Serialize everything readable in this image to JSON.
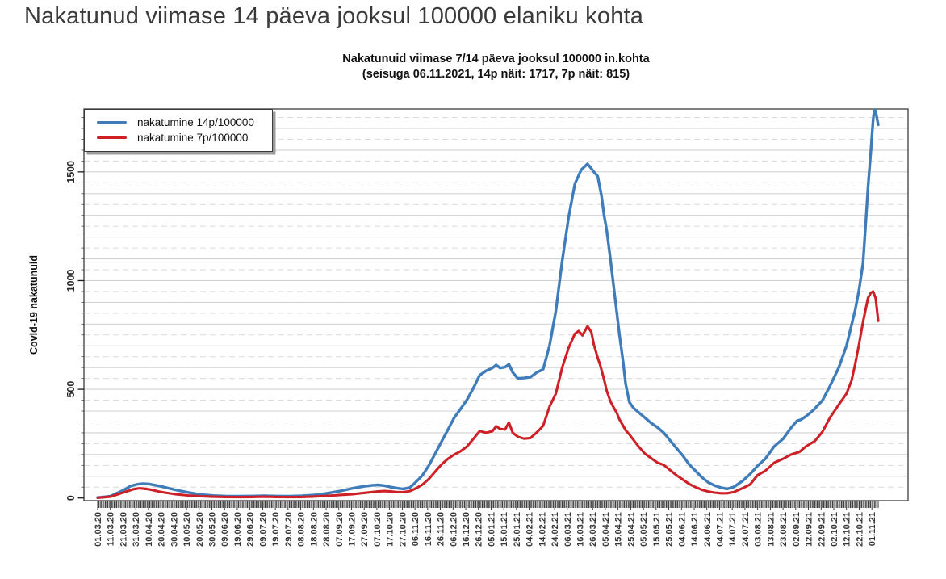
{
  "page": {
    "heading": "Nakatunud viimase 14 päeva jooksul 100000 elaniku kohta"
  },
  "chart": {
    "title": "Nakatunuid viimase 7/14 päeva jooksul 100000 in.kohta",
    "subtitle": "(seisuga 06.11.2021, 14p näit: 1717, 7p näit: 815)",
    "legend_items": [
      {
        "label": "nakatumine 14p/100000",
        "color": "#3f7cba"
      },
      {
        "label": "nakatumine 7p/100000",
        "color": "#cd2127"
      }
    ]
  },
  "chart_data": {
    "type": "line",
    "title": "Nakatunuid viimase 7/14 päeva jooksul 100000 in.kohta",
    "subtitle": "(seisuga 06.11.2021, 14p näit: 1717, 7p näit: 815)",
    "xlabel": "",
    "ylabel": "Covid-19 nakatunuid",
    "as_of": "06.11.2021",
    "latest": {
      "14p": 1717,
      "7p": 815
    },
    "x_unit": "days since 01.03.2020; tick labels every 10 days",
    "x_tick_step_days": 10,
    "x_range_days": [
      0,
      615
    ],
    "ylim": [
      0,
      1789
    ],
    "yticks": [
      0,
      500,
      1000,
      1500
    ],
    "grid": "solid gray every 100, dashed light gray every 50",
    "legend_position": "top-left",
    "x_tick_labels": [
      "01.03.20",
      "11.03.20",
      "21.03.20",
      "31.03.20",
      "10.04.20",
      "20.04.20",
      "30.04.20",
      "10.05.20",
      "20.05.20",
      "30.05.20",
      "09.06.20",
      "19.06.20",
      "29.06.20",
      "09.07.20",
      "19.07.20",
      "29.07.20",
      "08.08.20",
      "18.08.20",
      "28.08.20",
      "07.09.20",
      "17.09.20",
      "27.09.20",
      "07.10.20",
      "17.10.20",
      "27.10.20",
      "06.11.20",
      "16.11.20",
      "26.11.20",
      "06.12.20",
      "16.12.20",
      "26.12.20",
      "05.01.21",
      "15.01.21",
      "25.01.21",
      "04.02.21",
      "14.02.21",
      "24.02.21",
      "06.03.21",
      "16.03.21",
      "26.03.21",
      "05.04.21",
      "15.04.21",
      "25.04.21",
      "05.05.21",
      "15.05.21",
      "25.05.21",
      "04.06.21",
      "14.06.21",
      "24.06.21",
      "04.07.21",
      "14.07.21",
      "24.07.21",
      "03.08.21",
      "13.08.21",
      "23.08.21",
      "02.09.21",
      "12.09.21",
      "22.09.21",
      "02.10.21",
      "12.10.21",
      "22.10.21",
      "01.11.21"
    ],
    "series": [
      {
        "name": "nakatumine 14p/100000",
        "color": "#3f7cba",
        "points": [
          [
            0,
            2
          ],
          [
            10,
            8
          ],
          [
            20,
            35
          ],
          [
            26,
            55
          ],
          [
            31,
            63
          ],
          [
            36,
            66
          ],
          [
            41,
            64
          ],
          [
            46,
            58
          ],
          [
            51,
            52
          ],
          [
            61,
            38
          ],
          [
            71,
            26
          ],
          [
            81,
            16
          ],
          [
            91,
            11
          ],
          [
            101,
            9
          ],
          [
            111,
            8
          ],
          [
            121,
            9
          ],
          [
            131,
            10
          ],
          [
            141,
            9
          ],
          [
            151,
            8
          ],
          [
            161,
            10
          ],
          [
            171,
            14
          ],
          [
            181,
            22
          ],
          [
            191,
            32
          ],
          [
            201,
            45
          ],
          [
            211,
            55
          ],
          [
            216,
            58
          ],
          [
            221,
            60
          ],
          [
            226,
            57
          ],
          [
            231,
            50
          ],
          [
            236,
            45
          ],
          [
            241,
            42
          ],
          [
            246,
            48
          ],
          [
            251,
            75
          ],
          [
            256,
            105
          ],
          [
            261,
            150
          ],
          [
            266,
            205
          ],
          [
            271,
            260
          ],
          [
            276,
            315
          ],
          [
            281,
            370
          ],
          [
            286,
            410
          ],
          [
            291,
            452
          ],
          [
            296,
            505
          ],
          [
            301,
            565
          ],
          [
            306,
            585
          ],
          [
            311,
            598
          ],
          [
            314,
            612
          ],
          [
            317,
            598
          ],
          [
            321,
            602
          ],
          [
            324,
            615
          ],
          [
            327,
            578
          ],
          [
            331,
            550
          ],
          [
            336,
            552
          ],
          [
            341,
            556
          ],
          [
            346,
            578
          ],
          [
            351,
            592
          ],
          [
            356,
            700
          ],
          [
            361,
            860
          ],
          [
            366,
            1090
          ],
          [
            371,
            1290
          ],
          [
            376,
            1445
          ],
          [
            381,
            1510
          ],
          [
            386,
            1537
          ],
          [
            389,
            1515
          ],
          [
            391,
            1500
          ],
          [
            394,
            1480
          ],
          [
            397,
            1390
          ],
          [
            399,
            1300
          ],
          [
            401,
            1235
          ],
          [
            404,
            1100
          ],
          [
            406,
            1000
          ],
          [
            409,
            855
          ],
          [
            411,
            755
          ],
          [
            414,
            625
          ],
          [
            416,
            525
          ],
          [
            419,
            440
          ],
          [
            422,
            415
          ],
          [
            426,
            395
          ],
          [
            431,
            370
          ],
          [
            436,
            345
          ],
          [
            441,
            325
          ],
          [
            446,
            300
          ],
          [
            451,
            265
          ],
          [
            456,
            230
          ],
          [
            461,
            195
          ],
          [
            466,
            155
          ],
          [
            471,
            125
          ],
          [
            476,
            95
          ],
          [
            481,
            72
          ],
          [
            486,
            58
          ],
          [
            491,
            48
          ],
          [
            496,
            42
          ],
          [
            501,
            50
          ],
          [
            508,
            78
          ],
          [
            514,
            110
          ],
          [
            520,
            148
          ],
          [
            526,
            180
          ],
          [
            533,
            237
          ],
          [
            540,
            272
          ],
          [
            546,
            320
          ],
          [
            551,
            355
          ],
          [
            554,
            360
          ],
          [
            558,
            375
          ],
          [
            564,
            405
          ],
          [
            571,
            448
          ],
          [
            577,
            515
          ],
          [
            584,
            601
          ],
          [
            590,
            700
          ],
          [
            597,
            868
          ],
          [
            600,
            960
          ],
          [
            603,
            1080
          ],
          [
            605,
            1250
          ],
          [
            607,
            1430
          ],
          [
            609,
            1580
          ],
          [
            611,
            1740
          ],
          [
            612,
            1786
          ],
          [
            613,
            1778
          ],
          [
            615,
            1717
          ]
        ]
      },
      {
        "name": "nakatumine 7p/100000",
        "color": "#cd2127",
        "points": [
          [
            0,
            1
          ],
          [
            10,
            6
          ],
          [
            20,
            25
          ],
          [
            28,
            40
          ],
          [
            33,
            45
          ],
          [
            38,
            42
          ],
          [
            43,
            37
          ],
          [
            48,
            30
          ],
          [
            53,
            25
          ],
          [
            61,
            18
          ],
          [
            71,
            12
          ],
          [
            81,
            8
          ],
          [
            91,
            6
          ],
          [
            101,
            5
          ],
          [
            111,
            4
          ],
          [
            121,
            5
          ],
          [
            131,
            6
          ],
          [
            141,
            5
          ],
          [
            151,
            4
          ],
          [
            161,
            5
          ],
          [
            171,
            7
          ],
          [
            181,
            10
          ],
          [
            191,
            14
          ],
          [
            201,
            18
          ],
          [
            211,
            24
          ],
          [
            221,
            30
          ],
          [
            226,
            32
          ],
          [
            231,
            30
          ],
          [
            236,
            27
          ],
          [
            241,
            27
          ],
          [
            246,
            32
          ],
          [
            251,
            45
          ],
          [
            256,
            62
          ],
          [
            261,
            88
          ],
          [
            266,
            122
          ],
          [
            271,
            155
          ],
          [
            276,
            180
          ],
          [
            281,
            200
          ],
          [
            286,
            215
          ],
          [
            291,
            237
          ],
          [
            296,
            272
          ],
          [
            301,
            308
          ],
          [
            306,
            300
          ],
          [
            311,
            307
          ],
          [
            314,
            330
          ],
          [
            317,
            318
          ],
          [
            321,
            315
          ],
          [
            324,
            347
          ],
          [
            327,
            300
          ],
          [
            331,
            282
          ],
          [
            336,
            273
          ],
          [
            341,
            276
          ],
          [
            346,
            302
          ],
          [
            351,
            332
          ],
          [
            356,
            420
          ],
          [
            361,
            480
          ],
          [
            366,
            600
          ],
          [
            371,
            690
          ],
          [
            376,
            755
          ],
          [
            379,
            768
          ],
          [
            382,
            748
          ],
          [
            386,
            790
          ],
          [
            389,
            762
          ],
          [
            391,
            705
          ],
          [
            394,
            645
          ],
          [
            396,
            610
          ],
          [
            399,
            545
          ],
          [
            401,
            495
          ],
          [
            404,
            445
          ],
          [
            406,
            422
          ],
          [
            409,
            392
          ],
          [
            411,
            362
          ],
          [
            414,
            332
          ],
          [
            416,
            312
          ],
          [
            419,
            292
          ],
          [
            422,
            268
          ],
          [
            426,
            238
          ],
          [
            431,
            205
          ],
          [
            436,
            183
          ],
          [
            441,
            163
          ],
          [
            446,
            152
          ],
          [
            451,
            128
          ],
          [
            456,
            105
          ],
          [
            461,
            85
          ],
          [
            466,
            65
          ],
          [
            471,
            50
          ],
          [
            476,
            38
          ],
          [
            481,
            30
          ],
          [
            486,
            25
          ],
          [
            491,
            22
          ],
          [
            496,
            22
          ],
          [
            501,
            27
          ],
          [
            508,
            45
          ],
          [
            514,
            62
          ],
          [
            520,
            105
          ],
          [
            526,
            125
          ],
          [
            533,
            162
          ],
          [
            540,
            180
          ],
          [
            546,
            199
          ],
          [
            549,
            205
          ],
          [
            553,
            212
          ],
          [
            558,
            237
          ],
          [
            565,
            262
          ],
          [
            571,
            304
          ],
          [
            577,
            370
          ],
          [
            584,
            430
          ],
          [
            590,
            480
          ],
          [
            594,
            540
          ],
          [
            597,
            620
          ],
          [
            600,
            710
          ],
          [
            603,
            810
          ],
          [
            605,
            865
          ],
          [
            607,
            920
          ],
          [
            609,
            942
          ],
          [
            611,
            950
          ],
          [
            613,
            918
          ],
          [
            615,
            815
          ]
        ]
      }
    ]
  }
}
